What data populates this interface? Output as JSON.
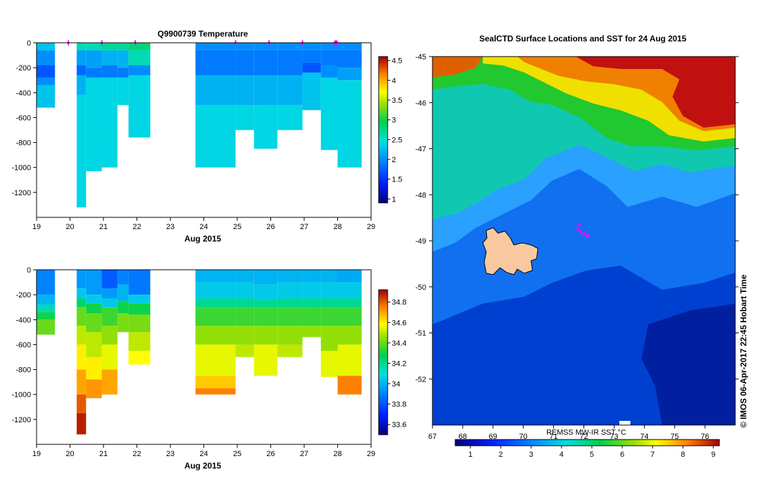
{
  "chart_data": [
    {
      "type": "heatmap",
      "id": "temperature-profile",
      "title": "Q9900739  Temperature",
      "xlabel": "Aug 2015",
      "xticks": [
        "19",
        "20",
        "21",
        "22",
        "23",
        "24",
        "25",
        "26",
        "27",
        "28",
        "29"
      ],
      "xlim": [
        19,
        29
      ],
      "ylim": [
        0,
        -1400
      ],
      "yticks": [
        "0",
        "-200",
        "-400",
        "-600",
        "-800",
        "-1000",
        "-1200"
      ],
      "ytick_values": [
        0,
        -200,
        -400,
        -600,
        -800,
        -1000,
        -1200
      ],
      "colorbar": {
        "min": 0.9,
        "max": 4.6,
        "ticks": [
          "4.5",
          "4",
          "3.5",
          "3",
          "2.5",
          "2",
          "1.5",
          "1"
        ],
        "tick_values": [
          4.5,
          4,
          3.5,
          3,
          2.5,
          2,
          1.5,
          1
        ]
      },
      "profile_markers": [
        19.95,
        20.95,
        21.95,
        24.95,
        25.95,
        26.95,
        27.95
      ],
      "columns": [
        {
          "x0": 19.0,
          "x1": 19.55,
          "depth": -520,
          "layers": [
            [
              0,
              -60,
              2.3
            ],
            [
              -60,
              -180,
              2.0
            ],
            [
              -180,
              -280,
              1.7
            ],
            [
              -280,
              -340,
              2.0
            ],
            [
              -340,
              -520,
              2.3
            ]
          ]
        },
        {
          "x0": 20.2,
          "x1": 20.48,
          "depth": -1320,
          "layers": [
            [
              0,
              -60,
              2.6
            ],
            [
              -60,
              -180,
              2.1
            ],
            [
              -180,
              -260,
              1.8
            ],
            [
              -260,
              -420,
              2.2
            ],
            [
              -420,
              -1320,
              2.4
            ]
          ]
        },
        {
          "x0": 20.48,
          "x1": 20.95,
          "depth": -1030,
          "layers": [
            [
              0,
              -60,
              2.6
            ],
            [
              -60,
              -200,
              2.1
            ],
            [
              -200,
              -280,
              1.9
            ],
            [
              -280,
              -1030,
              2.4
            ]
          ]
        },
        {
          "x0": 20.95,
          "x1": 21.42,
          "depth": -1000,
          "layers": [
            [
              0,
              -60,
              2.7
            ],
            [
              -60,
              -180,
              2.2
            ],
            [
              -180,
              -280,
              1.9
            ],
            [
              -280,
              -800,
              2.4
            ],
            [
              -800,
              -1000,
              2.4
            ]
          ]
        },
        {
          "x0": 21.42,
          "x1": 21.75,
          "depth": -500,
          "layers": [
            [
              0,
              -60,
              2.7
            ],
            [
              -60,
              -200,
              2.2
            ],
            [
              -200,
              -280,
              1.9
            ],
            [
              -280,
              -500,
              2.4
            ]
          ]
        },
        {
          "x0": 21.75,
          "x1": 22.4,
          "depth": -760,
          "layers": [
            [
              0,
              -60,
              2.8
            ],
            [
              -60,
              -180,
              2.6
            ],
            [
              -180,
              -260,
              2.0
            ],
            [
              -260,
              -760,
              2.4
            ]
          ]
        },
        {
          "x0": 23.75,
          "x1": 24.95,
          "depth": -1000,
          "layers": [
            [
              0,
              -60,
              2.0
            ],
            [
              -60,
              -260,
              1.9
            ],
            [
              -260,
              -500,
              2.2
            ],
            [
              -500,
              -1000,
              2.4
            ]
          ]
        },
        {
          "x0": 24.95,
          "x1": 25.5,
          "depth": -700,
          "layers": [
            [
              0,
              -60,
              2.0
            ],
            [
              -60,
              -260,
              1.9
            ],
            [
              -260,
              -500,
              2.2
            ],
            [
              -500,
              -700,
              2.4
            ]
          ]
        },
        {
          "x0": 25.5,
          "x1": 26.2,
          "depth": -850,
          "layers": [
            [
              0,
              -60,
              2.0
            ],
            [
              -60,
              -260,
              1.9
            ],
            [
              -260,
              -500,
              2.2
            ],
            [
              -500,
              -850,
              2.4
            ]
          ]
        },
        {
          "x0": 26.2,
          "x1": 26.95,
          "depth": -700,
          "layers": [
            [
              0,
              -60,
              2.0
            ],
            [
              -60,
              -260,
              1.9
            ],
            [
              -260,
              -500,
              2.2
            ],
            [
              -500,
              -700,
              2.4
            ]
          ]
        },
        {
          "x0": 26.95,
          "x1": 27.5,
          "depth": -540,
          "layers": [
            [
              0,
              -60,
              2.0
            ],
            [
              -60,
              -160,
              1.9
            ],
            [
              -160,
              -240,
              1.7
            ],
            [
              -240,
              -540,
              2.3
            ]
          ]
        },
        {
          "x0": 27.5,
          "x1": 28.0,
          "depth": -860,
          "layers": [
            [
              0,
              -60,
              2.0
            ],
            [
              -60,
              -180,
              1.9
            ],
            [
              -180,
              -280,
              2.0
            ],
            [
              -280,
              -860,
              2.4
            ]
          ]
        },
        {
          "x0": 28.0,
          "x1": 28.72,
          "depth": -1000,
          "layers": [
            [
              0,
              -60,
              2.0
            ],
            [
              -60,
              -200,
              1.9
            ],
            [
              -200,
              -300,
              2.1
            ],
            [
              -300,
              -1000,
              2.4
            ]
          ]
        }
      ]
    },
    {
      "type": "heatmap",
      "id": "salinity-profile",
      "title": "",
      "xlabel": "Aug 2015",
      "xticks": [
        "19",
        "20",
        "21",
        "22",
        "23",
        "24",
        "25",
        "26",
        "27",
        "28",
        "29"
      ],
      "xlim": [
        19,
        29
      ],
      "ylim": [
        0,
        -1400
      ],
      "yticks": [
        "0",
        "-200",
        "-400",
        "-600",
        "-800",
        "-1000",
        "-1200"
      ],
      "ytick_values": [
        0,
        -200,
        -400,
        -600,
        -800,
        -1000,
        -1200
      ],
      "colorbar": {
        "min": 33.5,
        "max": 34.92,
        "ticks": [
          "34.8",
          "34.6",
          "34.4",
          "34.2",
          "34",
          "33.8",
          "33.6"
        ],
        "tick_values": [
          34.8,
          34.6,
          34.4,
          34.2,
          34.0,
          33.8,
          33.6
        ]
      },
      "columns": [
        {
          "x0": 19.0,
          "x1": 19.55,
          "depth": -520,
          "layers": [
            [
              0,
              -200,
              33.9
            ],
            [
              -200,
              -280,
              34.0
            ],
            [
              -280,
              -340,
              34.15
            ],
            [
              -340,
              -400,
              34.3
            ],
            [
              -400,
              -520,
              34.4
            ]
          ]
        },
        {
          "x0": 20.2,
          "x1": 20.48,
          "depth": -1320,
          "layers": [
            [
              0,
              -150,
              33.95
            ],
            [
              -150,
              -230,
              34.05
            ],
            [
              -230,
              -300,
              34.25
            ],
            [
              -300,
              -450,
              34.4
            ],
            [
              -450,
              -600,
              34.5
            ],
            [
              -600,
              -800,
              34.6
            ],
            [
              -800,
              -1000,
              34.7
            ],
            [
              -1000,
              -1150,
              34.8
            ],
            [
              -1150,
              -1320,
              34.88
            ]
          ]
        },
        {
          "x0": 20.48,
          "x1": 20.95,
          "depth": -1030,
          "layers": [
            [
              0,
              -200,
              33.95
            ],
            [
              -200,
              -270,
              34.05
            ],
            [
              -270,
              -350,
              34.3
            ],
            [
              -350,
              -500,
              34.4
            ],
            [
              -500,
              -700,
              34.5
            ],
            [
              -700,
              -880,
              34.6
            ],
            [
              -880,
              -1030,
              34.72
            ]
          ]
        },
        {
          "x0": 20.95,
          "x1": 21.42,
          "depth": -1000,
          "layers": [
            [
              0,
              -150,
              33.82
            ],
            [
              -150,
              -230,
              33.95
            ],
            [
              -230,
              -300,
              34.05
            ],
            [
              -300,
              -450,
              34.35
            ],
            [
              -450,
              -600,
              34.45
            ],
            [
              -600,
              -800,
              34.55
            ],
            [
              -800,
              -1000,
              34.7
            ]
          ]
        },
        {
          "x0": 21.42,
          "x1": 21.75,
          "depth": -500,
          "layers": [
            [
              0,
              -120,
              33.9
            ],
            [
              -120,
              -250,
              34.0
            ],
            [
              -250,
              -350,
              34.3
            ],
            [
              -350,
              -500,
              34.42
            ]
          ]
        },
        {
          "x0": 21.75,
          "x1": 22.4,
          "depth": -760,
          "layers": [
            [
              0,
              -200,
              33.88
            ],
            [
              -200,
              -270,
              34.05
            ],
            [
              -270,
              -360,
              34.3
            ],
            [
              -360,
              -500,
              34.42
            ],
            [
              -500,
              -650,
              34.5
            ],
            [
              -650,
              -760,
              34.58
            ]
          ]
        },
        {
          "x0": 23.75,
          "x1": 24.95,
          "depth": -1000,
          "layers": [
            [
              0,
              -100,
              34.0
            ],
            [
              -100,
              -230,
              34.05
            ],
            [
              -230,
              -300,
              34.2
            ],
            [
              -300,
              -450,
              34.35
            ],
            [
              -450,
              -600,
              34.45
            ],
            [
              -600,
              -850,
              34.55
            ],
            [
              -850,
              -950,
              34.65
            ],
            [
              -950,
              -1000,
              34.75
            ]
          ]
        },
        {
          "x0": 24.95,
          "x1": 25.5,
          "depth": -700,
          "layers": [
            [
              0,
              -100,
              34.0
            ],
            [
              -100,
              -230,
              34.05
            ],
            [
              -230,
              -300,
              34.2
            ],
            [
              -300,
              -450,
              34.35
            ],
            [
              -450,
              -600,
              34.45
            ],
            [
              -600,
              -700,
              34.5
            ]
          ]
        },
        {
          "x0": 25.5,
          "x1": 26.2,
          "depth": -850,
          "layers": [
            [
              0,
              -120,
              34.0
            ],
            [
              -120,
              -240,
              34.05
            ],
            [
              -240,
              -300,
              34.2
            ],
            [
              -300,
              -450,
              34.35
            ],
            [
              -450,
              -600,
              34.45
            ],
            [
              -600,
              -850,
              34.55
            ]
          ]
        },
        {
          "x0": 26.2,
          "x1": 26.95,
          "depth": -700,
          "layers": [
            [
              0,
              -100,
              34.0
            ],
            [
              -100,
              -230,
              34.05
            ],
            [
              -230,
              -300,
              34.2
            ],
            [
              -300,
              -450,
              34.35
            ],
            [
              -450,
              -600,
              34.45
            ],
            [
              -600,
              -700,
              34.5
            ]
          ]
        },
        {
          "x0": 26.95,
          "x1": 27.5,
          "depth": -540,
          "layers": [
            [
              0,
              -100,
              34.0
            ],
            [
              -100,
              -230,
              34.05
            ],
            [
              -230,
              -300,
              34.2
            ],
            [
              -300,
              -450,
              34.35
            ],
            [
              -450,
              -540,
              34.45
            ]
          ]
        },
        {
          "x0": 27.5,
          "x1": 28.0,
          "depth": -860,
          "layers": [
            [
              0,
              -100,
              34.0
            ],
            [
              -100,
              -230,
              34.05
            ],
            [
              -230,
              -300,
              34.2
            ],
            [
              -300,
              -450,
              34.35
            ],
            [
              -450,
              -650,
              34.45
            ],
            [
              -650,
              -860,
              34.55
            ]
          ]
        },
        {
          "x0": 28.0,
          "x1": 28.72,
          "depth": -1000,
          "layers": [
            [
              0,
              -100,
              33.98
            ],
            [
              -100,
              -230,
              34.05
            ],
            [
              -230,
              -300,
              34.2
            ],
            [
              -300,
              -450,
              34.35
            ],
            [
              -450,
              -600,
              34.45
            ],
            [
              -600,
              -850,
              34.55
            ],
            [
              -850,
              -1000,
              34.75
            ]
          ]
        }
      ]
    },
    {
      "type": "heatmap",
      "id": "sst-map",
      "title": "SealCTD Surface Locations and SST for 24 Aug 2015",
      "xlabel": "REMSS MW-IR SST °C",
      "xlim": [
        67,
        77
      ],
      "ylim": [
        -45,
        -53
      ],
      "xticks": [
        "67",
        "68",
        "69",
        "70",
        "71",
        "72",
        "73",
        "74",
        "75",
        "76"
      ],
      "xtick_values": [
        67,
        68,
        69,
        70,
        71,
        72,
        73,
        74,
        75,
        76
      ],
      "yticks": [
        "-45",
        "-46",
        "-47",
        "-48",
        "-49",
        "-50",
        "-51",
        "-52"
      ],
      "ytick_values": [
        -45,
        -46,
        -47,
        -48,
        -49,
        -50,
        -51,
        -52
      ],
      "colorbar": {
        "min": 0.5,
        "max": 9.2,
        "ticks": [
          "1",
          "2",
          "3",
          "4",
          "5",
          "6",
          "7",
          "8",
          "9"
        ],
        "tick_values": [
          1,
          2,
          3,
          4,
          5,
          6,
          7,
          8,
          9
        ]
      },
      "seal_positions": [
        [
          71.9,
          -48.8
        ],
        [
          72.0,
          -48.85
        ],
        [
          72.1,
          -48.9
        ],
        [
          71.8,
          -48.75
        ],
        [
          72.15,
          -48.88
        ],
        [
          71.85,
          -48.65
        ]
      ],
      "credit": "© IMOS 06-Apr-2017 22:45 Hobart Time"
    }
  ],
  "colors": {
    "land": "#f8c9a0",
    "marker": "#ff00ff",
    "axis": "#000000"
  }
}
